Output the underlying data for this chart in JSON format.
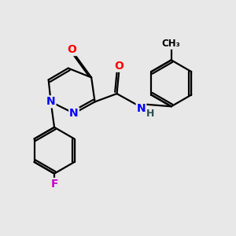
{
  "bg_color": "#e8e8e8",
  "bond_color": "#000000",
  "bond_width": 1.6,
  "atom_colors": {
    "O": "#ff0000",
    "N": "#0000ff",
    "F": "#cc00cc",
    "C": "#000000",
    "H": "#2f4f4f"
  },
  "font_size_atoms": 10,
  "font_size_ch3": 8.5
}
